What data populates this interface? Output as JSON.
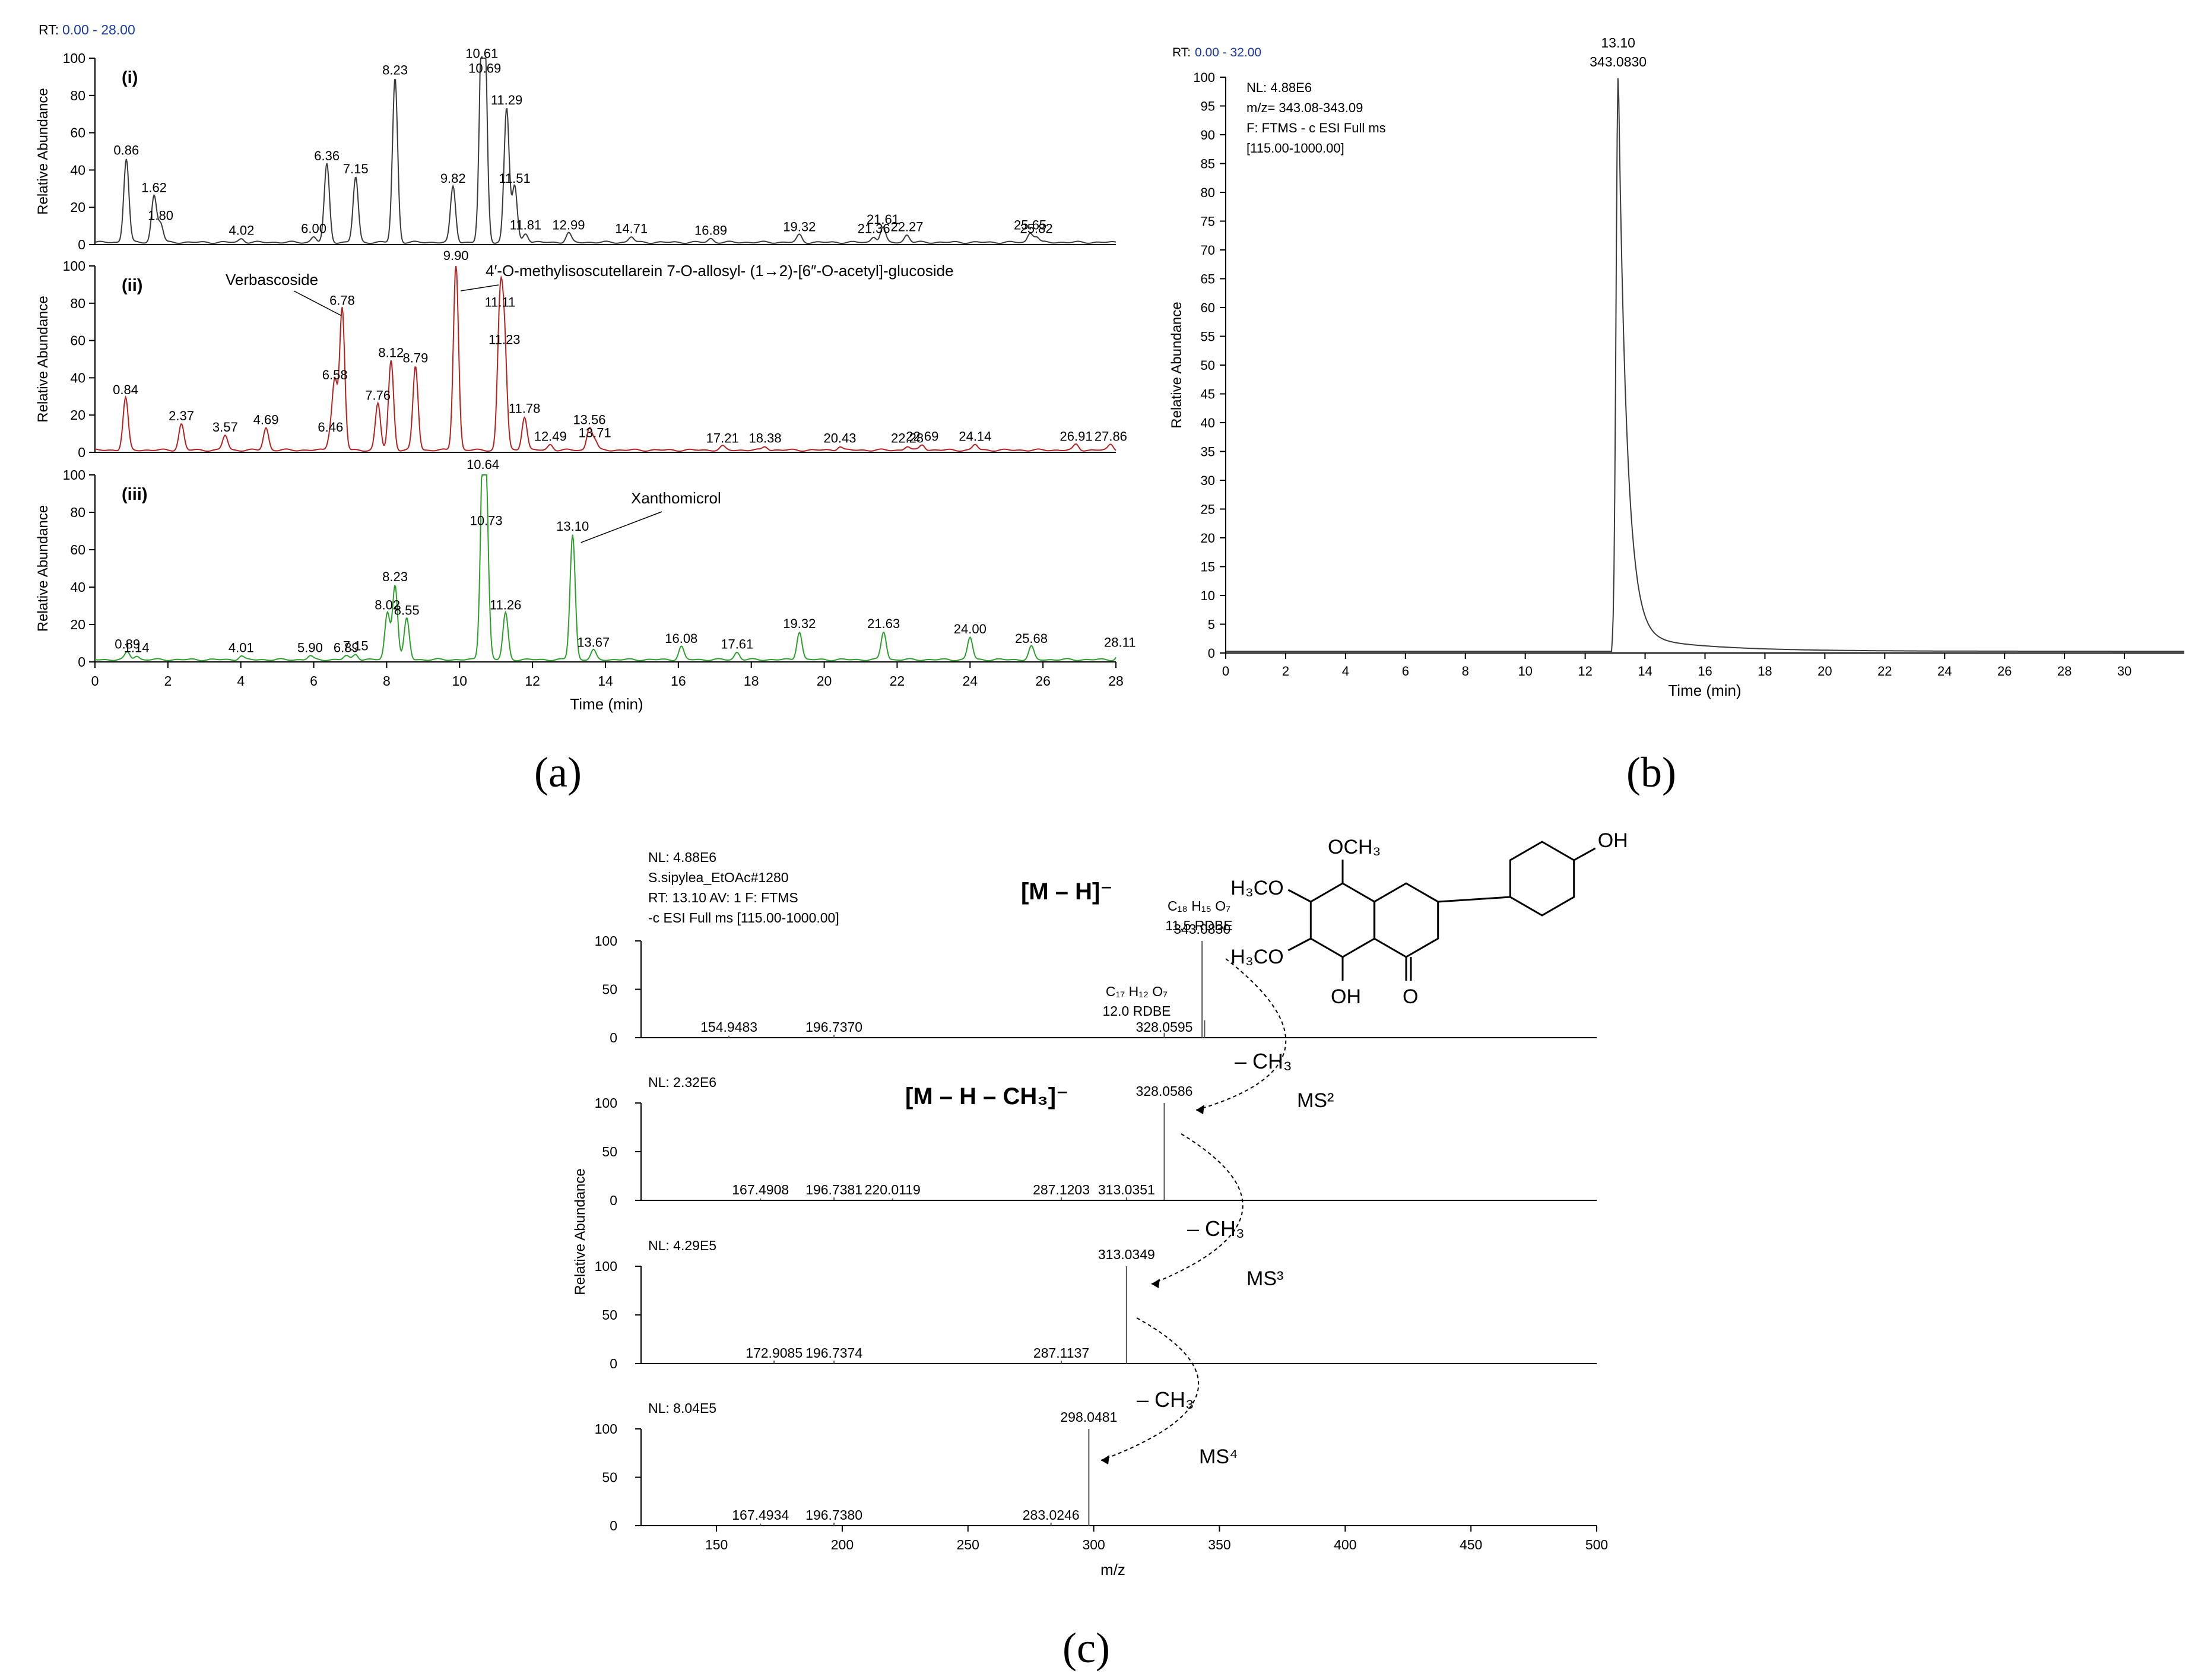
{
  "panels": {
    "a": {
      "letter": "(a)",
      "rt_prefix": "RT:",
      "rt_range": "0.00 - 28.00",
      "xlabel": "Time (min)",
      "ylabel": "Relative Abundance",
      "colors": {
        "i": "#3a3a3a",
        "ii": "#b22222",
        "iii": "#2e9e2e",
        "annot": "#22a022",
        "rt_range": "#1a3aa0"
      },
      "traces": [
        {
          "id": "i",
          "label": "(i)",
          "peaks": [
            [
              0.86,
              45
            ],
            [
              1.62,
              25
            ],
            [
              1.8,
              10
            ],
            [
              4.02,
              2
            ],
            [
              6.0,
              3
            ],
            [
              6.36,
              42
            ],
            [
              7.15,
              35
            ],
            [
              8.23,
              88
            ],
            [
              9.82,
              30
            ],
            [
              10.61,
              97
            ],
            [
              10.69,
              89
            ],
            [
              11.29,
              72
            ],
            [
              11.51,
              30
            ],
            [
              11.81,
              5
            ],
            [
              12.99,
              5
            ],
            [
              14.71,
              3
            ],
            [
              16.89,
              2
            ],
            [
              19.32,
              4
            ],
            [
              21.36,
              3
            ],
            [
              21.61,
              8
            ],
            [
              22.27,
              4
            ],
            [
              25.65,
              5
            ],
            [
              25.82,
              3
            ]
          ]
        },
        {
          "id": "ii",
          "label": "(ii)",
          "peaks": [
            [
              0.84,
              28
            ],
            [
              2.37,
              14
            ],
            [
              3.57,
              8
            ],
            [
              4.69,
              12
            ],
            [
              6.46,
              8
            ],
            [
              6.58,
              36
            ],
            [
              6.78,
              76
            ],
            [
              7.76,
              25
            ],
            [
              8.12,
              48
            ],
            [
              8.79,
              45
            ],
            [
              9.9,
              100
            ],
            [
              11.11,
              75
            ],
            [
              11.23,
              55
            ],
            [
              11.78,
              18
            ],
            [
              12.49,
              3
            ],
            [
              13.56,
              12
            ],
            [
              13.71,
              5
            ],
            [
              17.21,
              2
            ],
            [
              18.38,
              2
            ],
            [
              20.43,
              2
            ],
            [
              22.28,
              2
            ],
            [
              22.69,
              3
            ],
            [
              24.14,
              3
            ],
            [
              26.91,
              3
            ],
            [
              27.86,
              3
            ]
          ]
        },
        {
          "id": "iii",
          "label": "(iii)",
          "peaks": [
            [
              0.89,
              4
            ],
            [
              1.14,
              2
            ],
            [
              4.01,
              2
            ],
            [
              5.9,
              2
            ],
            [
              6.89,
              2
            ],
            [
              7.15,
              3
            ],
            [
              8.02,
              25
            ],
            [
              8.23,
              40
            ],
            [
              8.55,
              22
            ],
            [
              10.64,
              100
            ],
            [
              10.73,
              70
            ],
            [
              11.26,
              25
            ],
            [
              13.1,
              67
            ],
            [
              13.67,
              5
            ],
            [
              16.08,
              7
            ],
            [
              17.61,
              4
            ],
            [
              19.32,
              15
            ],
            [
              21.63,
              15
            ],
            [
              24.0,
              12
            ],
            [
              25.68,
              7
            ],
            [
              28.11,
              5
            ]
          ]
        }
      ],
      "xticks": [
        "0",
        "2",
        "4",
        "6",
        "8",
        "10",
        "12",
        "14",
        "16",
        "18",
        "20",
        "22",
        "24",
        "26",
        "28"
      ],
      "yticks": [
        "0",
        "20",
        "40",
        "60",
        "80",
        "100"
      ],
      "annotations": [
        {
          "trace": "ii",
          "rt": 6.78,
          "text": "Verbascoside"
        },
        {
          "trace": "ii",
          "rt": 9.9,
          "text": "4′-O-methylisoscutellarein 7-O-allosyl- (1→2)-[6″-O-acetyl]-glucoside"
        },
        {
          "trace": "iii",
          "rt": 13.1,
          "text": "Xanthomicrol"
        }
      ]
    },
    "b": {
      "letter": "(b)",
      "rt_prefix": "RT:",
      "rt_range": "0.00 - 32.00",
      "xlabel": "Time (min)",
      "ylabel": "Relative Abundance",
      "peak_rt": "13.10",
      "peak_mz": "343.0830",
      "info": [
        "NL: 4.88E6",
        "m/z= 343.08-343.09",
        "F: FTMS - c ESI Full ms",
        "[115.00-1000.00]"
      ],
      "xticks": [
        "0",
        "2",
        "4",
        "6",
        "8",
        "10",
        "12",
        "14",
        "16",
        "18",
        "20",
        "22",
        "24",
        "26",
        "28",
        "30"
      ],
      "yticks": [
        "0",
        "5",
        "10",
        "15",
        "20",
        "25",
        "30",
        "35",
        "40",
        "45",
        "50",
        "55",
        "60",
        "65",
        "70",
        "75",
        "80",
        "85",
        "90",
        "95",
        "100"
      ]
    },
    "c": {
      "letter": "(c)",
      "xlabel": "m/z",
      "ylabel": "Relative Abundance",
      "xticks": [
        "150",
        "200",
        "250",
        "300",
        "350",
        "400",
        "450",
        "500"
      ],
      "yticks": [
        "0",
        "50",
        "100"
      ],
      "spectra": [
        {
          "info": [
            "NL: 4.88E6",
            "S.sipylea_EtOAc#1280",
            "RT: 13.10  AV: 1 F: FTMS",
            "-c ESI Full ms [115.00-1000.00]"
          ],
          "bold_ion": "[M – H]⁻",
          "peaks": [
            {
              "mz": 154.9483,
              "y": 2,
              "label": "154.9483"
            },
            {
              "mz": 196.737,
              "y": 3,
              "label": "196.7370"
            },
            {
              "mz": 328.0595,
              "y": 5,
              "label": "328.0595"
            },
            {
              "mz": 343.083,
              "y": 100,
              "label": "343.0830"
            },
            {
              "mz": 344.0864,
              "y": 18,
              "label": ""
            }
          ],
          "formula_top": [
            "C₁₈ H₁₅ O₇",
            "11.5 RDBE"
          ],
          "formula_mid": [
            "C₁₇ H₁₂ O₇",
            "12.0 RDBE"
          ]
        },
        {
          "info": [
            "NL: 2.32E6"
          ],
          "bold_ion": "[M – H – CH₃]⁻",
          "peaks": [
            {
              "mz": 167.4908,
              "y": 2,
              "label": "167.4908"
            },
            {
              "mz": 196.7381,
              "y": 3,
              "label": "196.7381"
            },
            {
              "mz": 220.0119,
              "y": 2,
              "label": "220.0119"
            },
            {
              "mz": 287.1203,
              "y": 3,
              "label": "287.1203"
            },
            {
              "mz": 313.0351,
              "y": 3,
              "label": "313.0351"
            },
            {
              "mz": 328.0586,
              "y": 100,
              "label": "328.0586"
            }
          ]
        },
        {
          "info": [
            "NL: 4.29E5"
          ],
          "peaks": [
            {
              "mz": 172.9085,
              "y": 3,
              "label": "172.9085"
            },
            {
              "mz": 196.7374,
              "y": 3,
              "label": "196.7374"
            },
            {
              "mz": 287.1137,
              "y": 3,
              "label": "287.1137"
            },
            {
              "mz": 313.0349,
              "y": 100,
              "label": "313.0349"
            }
          ]
        },
        {
          "info": [
            "NL: 8.04E5"
          ],
          "peaks": [
            {
              "mz": 167.4934,
              "y": 2,
              "label": "167.4934"
            },
            {
              "mz": 196.738,
              "y": 3,
              "label": "196.7380"
            },
            {
              "mz": 283.0246,
              "y": 3,
              "label": "283.0246"
            },
            {
              "mz": 298.0481,
              "y": 100,
              "label": "298.0481"
            }
          ]
        }
      ],
      "arrows": [
        {
          "loss": "– CH₃",
          "stage": "MS²"
        },
        {
          "loss": "– CH₃",
          "stage": "MS³"
        },
        {
          "loss": "– CH₃",
          "stage": "MS⁴"
        }
      ],
      "structure_labels": {
        "och3": "OCH₃",
        "oh_top": "OH",
        "h3co_1": "H₃CO",
        "h3co_2": "H₃CO",
        "oh_bottom": "OH",
        "o_ketone": "O"
      }
    }
  },
  "chart_data": [
    {
      "type": "line",
      "title": "",
      "xlabel": "Time (min)",
      "ylabel": "Relative Abundance",
      "xlim": [
        0,
        28
      ],
      "ylim": [
        0,
        100
      ],
      "series": [
        {
          "name": "(i)",
          "peaks_rt": [
            0.86,
            1.62,
            1.8,
            4.02,
            6.0,
            6.36,
            7.15,
            8.23,
            9.82,
            10.61,
            10.69,
            11.29,
            11.51,
            11.81,
            12.99,
            14.71,
            16.89,
            19.32,
            21.36,
            21.61,
            22.27,
            25.65,
            25.82
          ]
        },
        {
          "name": "(ii)",
          "peaks_rt": [
            0.84,
            2.37,
            3.57,
            4.69,
            6.46,
            6.58,
            6.78,
            7.76,
            8.12,
            8.79,
            9.9,
            11.11,
            11.23,
            11.78,
            12.49,
            13.56,
            13.71,
            17.21,
            18.38,
            20.43,
            22.28,
            22.69,
            24.14,
            26.91,
            27.86
          ]
        },
        {
          "name": "(iii)",
          "peaks_rt": [
            0.89,
            1.14,
            4.01,
            5.9,
            6.89,
            7.15,
            8.02,
            8.23,
            8.55,
            10.64,
            10.73,
            11.26,
            13.1,
            13.67,
            16.08,
            17.61,
            19.32,
            21.63,
            24.0,
            25.68,
            28.11
          ]
        }
      ]
    },
    {
      "type": "line",
      "title": "",
      "xlabel": "Time (min)",
      "ylabel": "Relative Abundance",
      "xlim": [
        0,
        32
      ],
      "ylim": [
        0,
        100
      ],
      "series": [
        {
          "peak_rt": 13.1,
          "peak_mz": 343.083,
          "peak_value": 100
        }
      ]
    },
    {
      "type": "bar",
      "title": "",
      "xlabel": "m/z",
      "ylabel": "Relative Abundance",
      "xlim": [
        120,
        500
      ],
      "ylim": [
        0,
        100
      ],
      "series": [
        {
          "x": [
            154.9483,
            196.737,
            328.0595,
            343.083
          ],
          "y": [
            2,
            3,
            5,
            100
          ]
        },
        {
          "x": [
            167.4908,
            196.7381,
            220.0119,
            287.1203,
            313.0351,
            328.0586
          ],
          "y": [
            2,
            3,
            2,
            3,
            3,
            100
          ]
        },
        {
          "x": [
            172.9085,
            196.7374,
            287.1137,
            313.0349
          ],
          "y": [
            3,
            3,
            3,
            100
          ]
        },
        {
          "x": [
            167.4934,
            196.738,
            283.0246,
            298.0481
          ],
          "y": [
            2,
            3,
            3,
            100
          ]
        }
      ]
    }
  ]
}
